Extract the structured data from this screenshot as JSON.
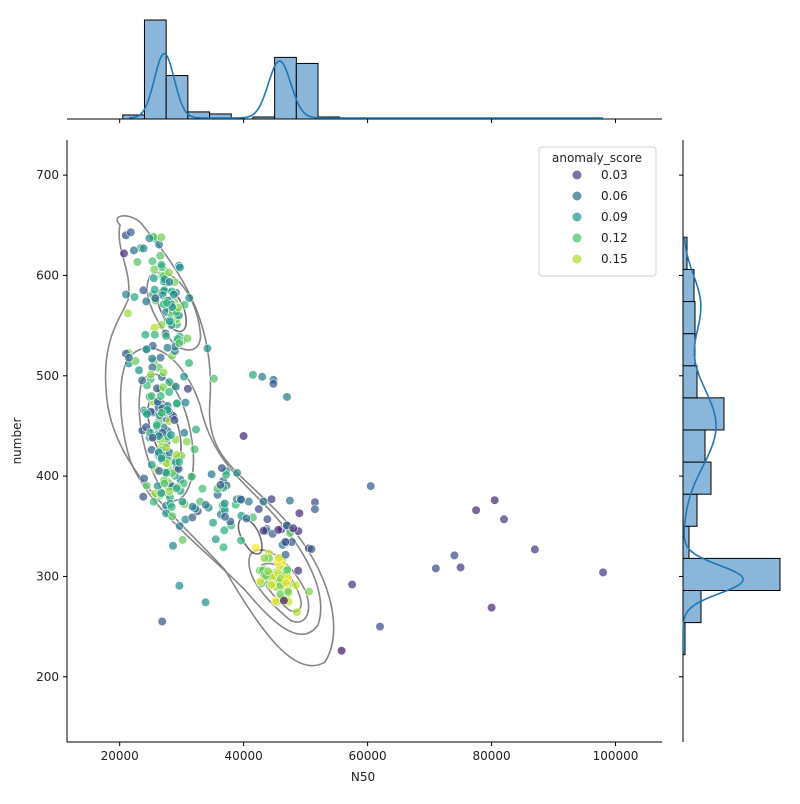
{
  "chart_data": {
    "type": "scatter",
    "title": "",
    "xlabel": "N50",
    "ylabel": "number",
    "xlim": [
      11500,
      107500
    ],
    "ylim": [
      135,
      735
    ],
    "xticks": [
      20000,
      40000,
      60000,
      80000,
      100000
    ],
    "yticks": [
      200,
      300,
      400,
      500,
      600,
      700
    ],
    "xtick_labels": [
      "20000",
      "40000",
      "60000",
      "80000",
      "100000"
    ],
    "ytick_labels": [
      "200",
      "300",
      "400",
      "500",
      "600",
      "700"
    ],
    "grid": false,
    "legend": {
      "title": "anomaly_score",
      "placement": "top-right",
      "entries": [
        {
          "label": "0.03",
          "value": 0.03,
          "color": "#482878"
        },
        {
          "label": "0.06",
          "value": 0.06,
          "color": "#31688e"
        },
        {
          "label": "0.09",
          "value": 0.09,
          "color": "#21a585"
        },
        {
          "label": "0.12",
          "value": 0.12,
          "color": "#6ece58"
        },
        {
          "label": "0.15",
          "value": 0.15,
          "color": "#d8e219"
        }
      ]
    },
    "colormap": "viridis",
    "point_color_range": [
      0.0,
      0.17
    ],
    "contour_color": "#808080",
    "hist_color": "#8ab7d9",
    "kde_color": "#1f77b4",
    "clusters": [
      {
        "center": [
          28200,
          572
        ],
        "spread": [
          1800,
          24
        ],
        "tilt": -0.9,
        "n": 70,
        "score_range": [
          0.07,
          0.14
        ]
      },
      {
        "center": [
          27000,
          445
        ],
        "spread": [
          2300,
          45
        ],
        "tilt": -0.9,
        "n": 150,
        "score_range": [
          0.04,
          0.15
        ]
      },
      {
        "center": [
          35500,
          375
        ],
        "spread": [
          3800,
          22
        ],
        "tilt": -0.4,
        "n": 45,
        "score_range": [
          0.05,
          0.13
        ]
      },
      {
        "center": [
          45500,
          297
        ],
        "spread": [
          1900,
          12
        ],
        "tilt": -0.2,
        "n": 65,
        "score_range": [
          0.12,
          0.17
        ]
      },
      {
        "center": [
          45500,
          345
        ],
        "spread": [
          2800,
          18
        ],
        "tilt": -0.5,
        "n": 25,
        "score_range": [
          0.02,
          0.07
        ]
      }
    ],
    "outliers": [
      {
        "x": 21000,
        "y": 640,
        "score": 0.04
      },
      {
        "x": 21800,
        "y": 643,
        "score": 0.05
      },
      {
        "x": 22300,
        "y": 625,
        "score": 0.06
      },
      {
        "x": 20700,
        "y": 622,
        "score": 0.02
      },
      {
        "x": 24800,
        "y": 637,
        "score": 0.08
      },
      {
        "x": 21000,
        "y": 522,
        "score": 0.05
      },
      {
        "x": 21500,
        "y": 518,
        "score": 0.06
      },
      {
        "x": 31000,
        "y": 487,
        "score": 0.03
      },
      {
        "x": 40000,
        "y": 440,
        "score": 0.02
      },
      {
        "x": 41500,
        "y": 501,
        "score": 0.1
      },
      {
        "x": 43000,
        "y": 499,
        "score": 0.07
      },
      {
        "x": 44800,
        "y": 496,
        "score": 0.06
      },
      {
        "x": 44800,
        "y": 492,
        "score": 0.05
      },
      {
        "x": 47000,
        "y": 479,
        "score": 0.07
      },
      {
        "x": 36500,
        "y": 408,
        "score": 0.04
      },
      {
        "x": 48000,
        "y": 348,
        "score": 0.02
      },
      {
        "x": 49000,
        "y": 363,
        "score": 0.02
      },
      {
        "x": 51500,
        "y": 374,
        "score": 0.04
      },
      {
        "x": 51500,
        "y": 367,
        "score": 0.05
      },
      {
        "x": 44500,
        "y": 377,
        "score": 0.03
      },
      {
        "x": 60500,
        "y": 390,
        "score": 0.05
      },
      {
        "x": 80500,
        "y": 376,
        "score": 0.02
      },
      {
        "x": 82000,
        "y": 357,
        "score": 0.03
      },
      {
        "x": 77500,
        "y": 366,
        "score": 0.02
      },
      {
        "x": 87000,
        "y": 327,
        "score": 0.03
      },
      {
        "x": 74000,
        "y": 321,
        "score": 0.04
      },
      {
        "x": 75000,
        "y": 309,
        "score": 0.03
      },
      {
        "x": 71000,
        "y": 308,
        "score": 0.04
      },
      {
        "x": 98000,
        "y": 304,
        "score": 0.03
      },
      {
        "x": 80000,
        "y": 269,
        "score": 0.02
      },
      {
        "x": 57500,
        "y": 292,
        "score": 0.03
      },
      {
        "x": 62000,
        "y": 250,
        "score": 0.04
      },
      {
        "x": 55800,
        "y": 226,
        "score": 0.01
      },
      {
        "x": 46500,
        "y": 276,
        "score": 0.01
      }
    ],
    "marginal_x_hist": {
      "bin_edges": [
        20500,
        24000,
        27500,
        31000,
        34500,
        38000,
        41500,
        45000,
        48500,
        52000,
        55500,
        59000,
        62500,
        66000,
        69500,
        73000,
        76500,
        80000,
        83500,
        87000,
        90500,
        94000,
        97500
      ],
      "counts": [
        4,
        98,
        43,
        7,
        5,
        0,
        2,
        61,
        55,
        2,
        1,
        1,
        1,
        1,
        1,
        0,
        1,
        1,
        1,
        1,
        0,
        1
      ]
    },
    "marginal_y_hist": {
      "bin_edges": [
        222,
        254,
        286,
        318,
        350,
        382,
        414,
        446,
        478,
        510,
        542,
        574,
        606,
        638
      ],
      "counts": [
        2,
        18,
        97,
        6,
        14,
        28,
        22,
        41,
        14,
        12,
        12,
        11,
        4
      ]
    }
  }
}
